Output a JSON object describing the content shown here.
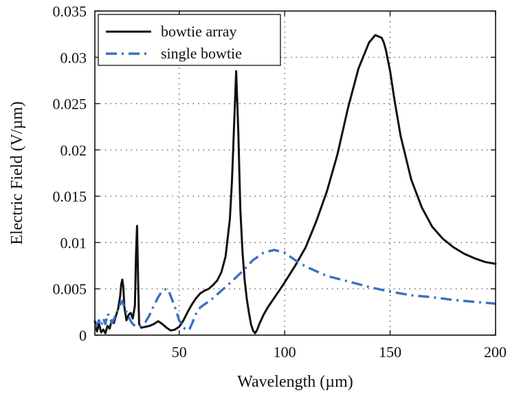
{
  "chart_data": {
    "type": "line",
    "xlabel": "Wavelength (µm)",
    "ylabel": "Electric Field (V/µm)",
    "xlim": [
      10,
      200
    ],
    "ylim": [
      0,
      0.035
    ],
    "xticks": [
      50,
      100,
      150,
      200
    ],
    "xtick_labels": [
      "50",
      "100",
      "150",
      "200"
    ],
    "yticks": [
      0,
      0.005,
      0.01,
      0.015,
      0.02,
      0.025,
      0.03,
      0.035
    ],
    "ytick_labels": [
      "0",
      "0.005",
      "0.01",
      "0.015",
      "0.02",
      "0.025",
      "0.03",
      "0.035"
    ],
    "grid": true,
    "legend_position": "top-left",
    "series": [
      {
        "name": "bowtie array",
        "color": "#111111",
        "style": "solid",
        "x": [
          10,
          11,
          12,
          13,
          14,
          15,
          16,
          17,
          18,
          19,
          20,
          21,
          22,
          22.5,
          23,
          23.5,
          24,
          25,
          26,
          27,
          28,
          29,
          29.5,
          30,
          30.5,
          31,
          32,
          34,
          36,
          38,
          40,
          42,
          44,
          46,
          48,
          50,
          52,
          54,
          56,
          58,
          60,
          62,
          64,
          66,
          68,
          70,
          72,
          74,
          75,
          76,
          77,
          78,
          79,
          80,
          81,
          82,
          83,
          84,
          85,
          86,
          87,
          88,
          90,
          92,
          95,
          98,
          100,
          105,
          110,
          115,
          120,
          125,
          130,
          135,
          140,
          143,
          146,
          147,
          148,
          150,
          152,
          155,
          160,
          165,
          170,
          175,
          180,
          185,
          190,
          195,
          200
        ],
        "y": [
          0.0015,
          0.0004,
          0.0012,
          0.0003,
          0.0006,
          0.0002,
          0.001,
          0.0007,
          0.0016,
          0.0013,
          0.0021,
          0.0028,
          0.0042,
          0.0055,
          0.006,
          0.0052,
          0.003,
          0.0016,
          0.0022,
          0.0024,
          0.0018,
          0.0032,
          0.0085,
          0.0118,
          0.006,
          0.0012,
          0.0008,
          0.0009,
          0.001,
          0.0012,
          0.0015,
          0.0012,
          0.0008,
          0.0005,
          0.0006,
          0.0009,
          0.0016,
          0.0025,
          0.0033,
          0.004,
          0.0045,
          0.0048,
          0.005,
          0.0054,
          0.0059,
          0.0068,
          0.0085,
          0.0125,
          0.0165,
          0.0225,
          0.0285,
          0.022,
          0.0135,
          0.009,
          0.006,
          0.004,
          0.0025,
          0.0012,
          0.0005,
          0.0002,
          0.0006,
          0.0012,
          0.0022,
          0.003,
          0.004,
          0.005,
          0.0057,
          0.0075,
          0.0095,
          0.0123,
          0.0155,
          0.0195,
          0.0245,
          0.0288,
          0.0316,
          0.0324,
          0.0321,
          0.0316,
          0.0308,
          0.0285,
          0.0255,
          0.0215,
          0.0168,
          0.0138,
          0.0117,
          0.0104,
          0.0095,
          0.0088,
          0.0083,
          0.0079,
          0.0077
        ]
      },
      {
        "name": "single bowtie",
        "color": "#3a6fc4",
        "style": "dash-dot",
        "x": [
          10,
          12,
          13,
          14,
          15,
          16,
          17,
          18,
          19,
          20,
          21,
          22,
          23,
          24,
          25,
          26,
          27,
          28,
          29,
          30,
          32,
          34,
          36,
          38,
          40,
          42,
          44,
          45,
          46,
          48,
          50,
          52,
          54,
          55,
          56,
          58,
          60,
          65,
          70,
          75,
          80,
          85,
          90,
          95,
          100,
          105,
          110,
          120,
          130,
          140,
          150,
          160,
          170,
          180,
          190,
          200
        ],
        "y": [
          0.0008,
          0.0016,
          0.001,
          0.0018,
          0.0012,
          0.0023,
          0.002,
          0.0013,
          0.0017,
          0.0022,
          0.0028,
          0.0033,
          0.0037,
          0.003,
          0.0025,
          0.002,
          0.0015,
          0.0012,
          0.001,
          0.0009,
          0.001,
          0.0014,
          0.0022,
          0.0032,
          0.0041,
          0.0048,
          0.005,
          0.0048,
          0.0042,
          0.003,
          0.0016,
          0.0008,
          0.0005,
          0.0007,
          0.0012,
          0.0023,
          0.003,
          0.0038,
          0.0048,
          0.0058,
          0.0069,
          0.0081,
          0.0089,
          0.0092,
          0.0089,
          0.0081,
          0.0074,
          0.0064,
          0.0058,
          0.0052,
          0.0047,
          0.0043,
          0.0041,
          0.0038,
          0.0036,
          0.0034
        ]
      }
    ]
  }
}
